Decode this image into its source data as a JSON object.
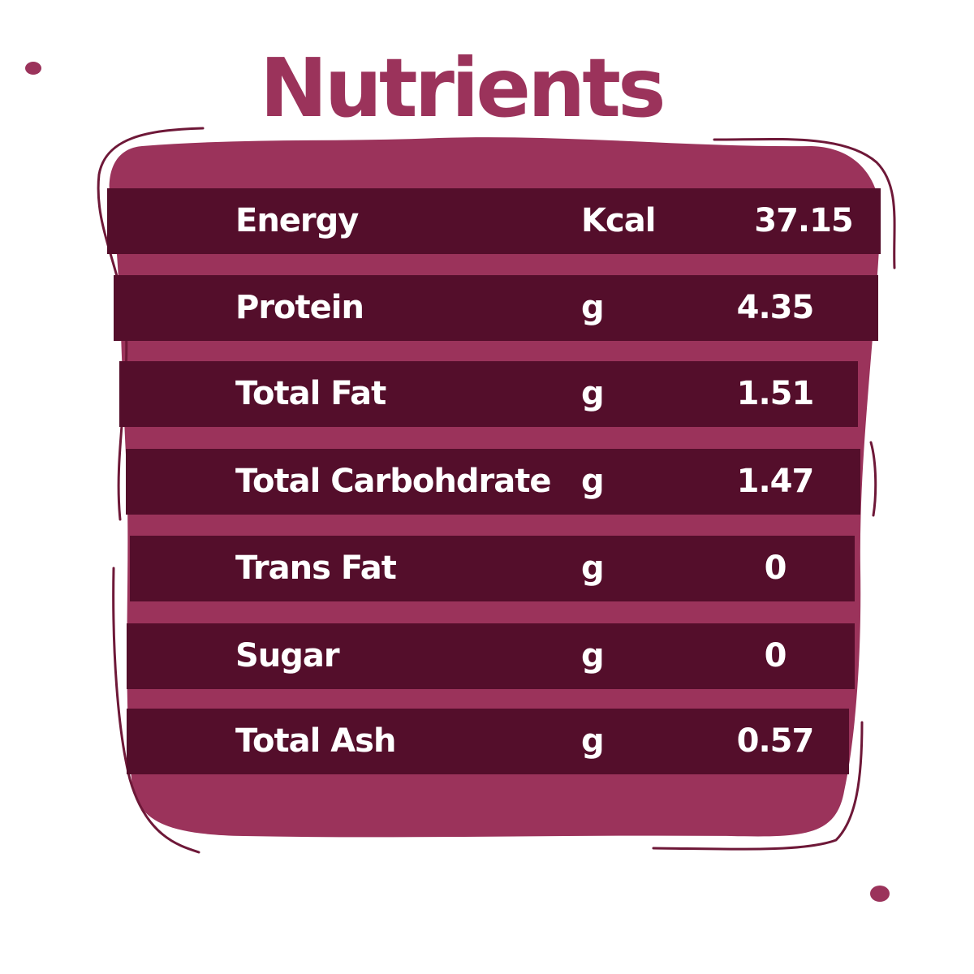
{
  "title": "Nutrients",
  "colors": {
    "panel": "#9b335b",
    "row": "#540e2b",
    "title": "#9b335b",
    "text": "#ffffff",
    "outline": "#6e1838"
  },
  "nutrients": [
    {
      "name": "Energy",
      "unit": "Kcal",
      "value": "37.15"
    },
    {
      "name": "Protein",
      "unit": "g",
      "value": "4.35"
    },
    {
      "name": "Total Fat",
      "unit": "g",
      "value": "1.51"
    },
    {
      "name": "Total Carbohdrate",
      "unit": "g",
      "value": "1.47"
    },
    {
      "name": "Trans Fat",
      "unit": "g",
      "value": "0"
    },
    {
      "name": "Sugar",
      "unit": "g",
      "value": "0"
    },
    {
      "name": "Total Ash",
      "unit": "g",
      "value": "0.57"
    }
  ]
}
